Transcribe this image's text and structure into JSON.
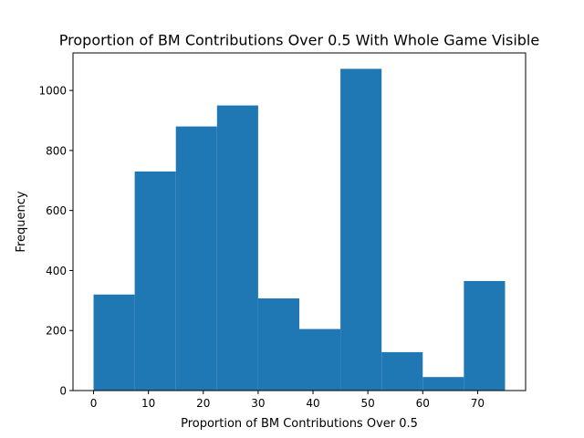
{
  "chart_data": {
    "type": "bar",
    "title": "Proportion of BM Contributions Over 0.5 With Whole Game Visible",
    "xlabel": "Proportion of BM Contributions Over 0.5",
    "ylabel": "Frequency",
    "bin_edges": [
      0,
      7.5,
      15,
      22.5,
      30,
      37.5,
      45,
      52.5,
      60,
      67.5,
      75
    ],
    "values": [
      320,
      730,
      880,
      950,
      307,
      205,
      1072,
      128,
      45,
      365
    ],
    "xlim": [
      -3.75,
      78.75
    ],
    "ylim": [
      0,
      1125
    ],
    "xticks": [
      0,
      10,
      20,
      30,
      40,
      50,
      60,
      70
    ],
    "yticks": [
      0,
      200,
      400,
      600,
      800,
      1000
    ],
    "grid": false,
    "bar_color": "#1f77b4"
  }
}
